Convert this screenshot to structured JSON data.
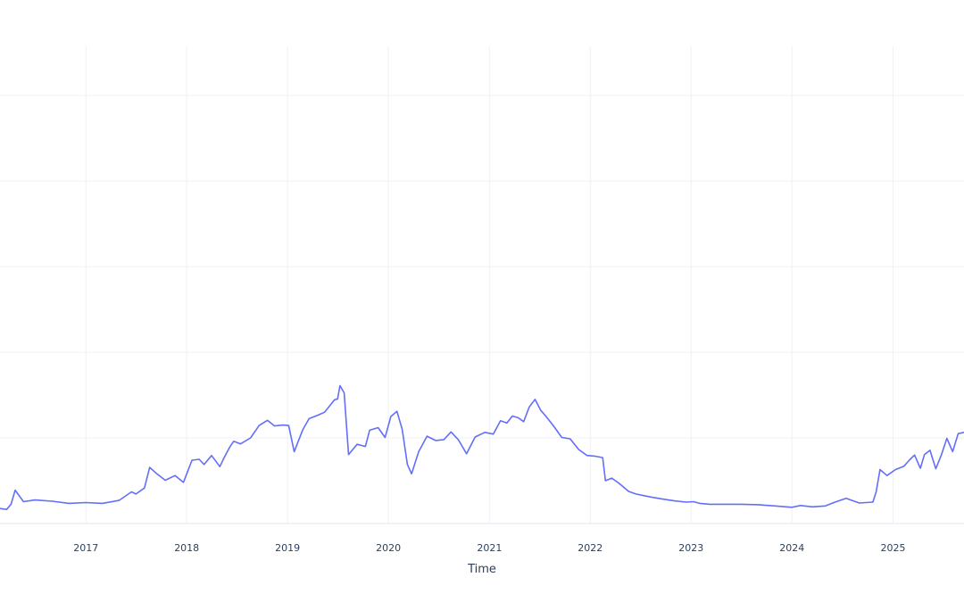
{
  "chart_data": {
    "type": "line",
    "title": "",
    "xlabel": "Time",
    "ylabel": "",
    "x_ticks": [
      "2017",
      "2018",
      "2019",
      "2020",
      "2021",
      "2022",
      "2023",
      "2024",
      "2025"
    ],
    "xlim": [
      "2016-02-25",
      "2025-09-15"
    ],
    "ylim": [
      0,
      100
    ],
    "y_gridlines": [
      0,
      20,
      40,
      60,
      80,
      100
    ],
    "grid": true,
    "legend": "none",
    "line_color": "#636efa",
    "series": [
      {
        "x": [
          "2016-02-25",
          "2016-03-20",
          "2016-04-05",
          "2016-04-20",
          "2016-05-20",
          "2016-07-01",
          "2016-09-01",
          "2016-11-01",
          "2017-01-01",
          "2017-03-01",
          "2017-05-01",
          "2017-06-15",
          "2017-07-01",
          "2017-08-01",
          "2017-08-20",
          "2017-09-15",
          "2017-10-15",
          "2017-11-20",
          "2017-12-20",
          "2018-01-20",
          "2018-02-15",
          "2018-03-05",
          "2018-04-01",
          "2018-05-01",
          "2018-05-15",
          "2018-06-05",
          "2018-06-20",
          "2018-07-15",
          "2018-08-20",
          "2018-09-20",
          "2018-10-20",
          "2018-11-15",
          "2018-12-15",
          "2019-01-05",
          "2019-01-25",
          "2019-02-25",
          "2019-03-20",
          "2019-04-20",
          "2019-05-15",
          "2019-06-20",
          "2019-07-01",
          "2019-07-10",
          "2019-07-25",
          "2019-08-10",
          "2019-09-10",
          "2019-10-10",
          "2019-10-25",
          "2019-11-25",
          "2019-12-20",
          "2020-01-10",
          "2020-02-01",
          "2020-02-20",
          "2020-03-10",
          "2020-03-25",
          "2020-04-20",
          "2020-05-20",
          "2020-06-20",
          "2020-07-20",
          "2020-08-15",
          "2020-09-10",
          "2020-10-10",
          "2020-11-10",
          "2020-12-15",
          "2021-01-15",
          "2021-02-10",
          "2021-03-05",
          "2021-03-25",
          "2021-04-15",
          "2021-05-05",
          "2021-05-25",
          "2021-06-15",
          "2021-07-05",
          "2021-07-25",
          "2021-08-20",
          "2021-09-20",
          "2021-10-20",
          "2021-11-20",
          "2021-12-20",
          "2022-01-20",
          "2022-02-15",
          "2022-02-25",
          "2022-03-20",
          "2022-04-15",
          "2022-05-20",
          "2022-06-15",
          "2022-07-15",
          "2022-08-15",
          "2022-09-20",
          "2022-11-01",
          "2022-12-15",
          "2023-01-10",
          "2023-02-01",
          "2023-03-10",
          "2023-05-01",
          "2023-07-01",
          "2023-09-01",
          "2023-11-01",
          "2024-01-01",
          "2024-02-01",
          "2024-03-15",
          "2024-05-01",
          "2024-06-01",
          "2024-07-15",
          "2024-09-01",
          "2024-10-20",
          "2024-11-01",
          "2024-11-15",
          "2024-12-10",
          "2025-01-10",
          "2025-02-10",
          "2025-03-01",
          "2025-03-20",
          "2025-04-10",
          "2025-04-25",
          "2025-05-15",
          "2025-06-05",
          "2025-06-25",
          "2025-07-15",
          "2025-08-05",
          "2025-08-25",
          "2025-09-15"
        ],
        "y": [
          3.5,
          3.3,
          4.5,
          7.8,
          5.1,
          5.5,
          5.2,
          4.7,
          4.9,
          4.7,
          5.4,
          7.4,
          6.9,
          8.3,
          13.1,
          11.6,
          10.1,
          11.2,
          9.6,
          14.8,
          15.0,
          13.8,
          15.9,
          13.3,
          15.2,
          17.8,
          19.2,
          18.6,
          20.0,
          22.9,
          24.1,
          22.8,
          23.0,
          22.9,
          16.8,
          21.9,
          24.5,
          25.3,
          26.0,
          28.9,
          29.1,
          32.2,
          30.5,
          16.1,
          18.5,
          18.0,
          21.8,
          22.4,
          20.1,
          25.0,
          26.2,
          22.0,
          13.8,
          11.6,
          16.8,
          20.4,
          19.4,
          19.6,
          21.4,
          19.6,
          16.3,
          20.2,
          21.3,
          20.9,
          24.0,
          23.5,
          25.1,
          24.7,
          23.8,
          27.2,
          29.0,
          26.5,
          25.0,
          22.9,
          20.1,
          19.8,
          17.3,
          15.9,
          15.7,
          15.4,
          10.0,
          10.6,
          9.4,
          7.5,
          6.9,
          6.5,
          6.1,
          5.7,
          5.3,
          5.0,
          5.1,
          4.7,
          4.5,
          4.5,
          4.5,
          4.4,
          4.1,
          3.8,
          4.2,
          3.9,
          4.1,
          4.9,
          5.9,
          4.8,
          5.0,
          7.4,
          12.6,
          11.2,
          12.6,
          13.4,
          14.8,
          16.0,
          12.9,
          16.1,
          17.1,
          12.8,
          16.0,
          19.9,
          16.8,
          21.0,
          21.3
        ]
      }
    ]
  }
}
